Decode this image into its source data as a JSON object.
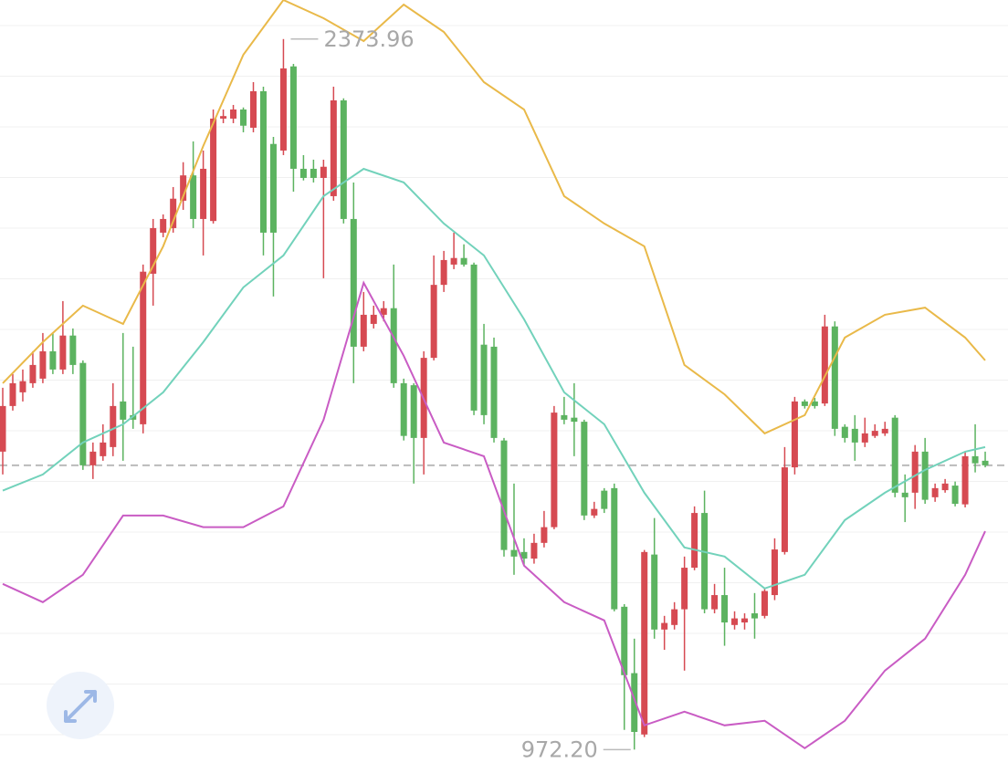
{
  "chart_data": {
    "type": "candlestick",
    "ylim": [
      926,
      2451
    ],
    "up_color": "#d64a52",
    "down_color": "#5cb360",
    "ohlc": [
      [
        1560,
        1686,
        1515,
        1650
      ],
      [
        1650,
        1713,
        1641,
        1695
      ],
      [
        1677,
        1722,
        1659,
        1699
      ],
      [
        1695,
        1758,
        1686,
        1731
      ],
      [
        1704,
        1794,
        1695,
        1758
      ],
      [
        1758,
        1794,
        1713,
        1722
      ],
      [
        1722,
        1857,
        1713,
        1789
      ],
      [
        1789,
        1803,
        1713,
        1731
      ],
      [
        1735,
        1740,
        1524,
        1533
      ],
      [
        1533,
        1578,
        1506,
        1560
      ],
      [
        1551,
        1614,
        1542,
        1578
      ],
      [
        1569,
        1695,
        1551,
        1650
      ],
      [
        1659,
        1794,
        1542,
        1623
      ],
      [
        1632,
        1767,
        1605,
        1623
      ],
      [
        1614,
        1929,
        1596,
        1915
      ],
      [
        1911,
        2019,
        1848,
        2001
      ],
      [
        1992,
        2028,
        1983,
        2019
      ],
      [
        2001,
        2082,
        1992,
        2059
      ],
      [
        2055,
        2131,
        2037,
        2105
      ],
      [
        2105,
        2172,
        2001,
        2019
      ],
      [
        2019,
        2154,
        1947,
        2118
      ],
      [
        2015,
        2235,
        2010,
        2217
      ],
      [
        2217,
        2235,
        2208,
        2222
      ],
      [
        2217,
        2244,
        2208,
        2235
      ],
      [
        2235,
        2239,
        2190,
        2203
      ],
      [
        2199,
        2289,
        2190,
        2271
      ],
      [
        2271,
        2280,
        1947,
        1992
      ],
      [
        2167,
        2181,
        1866,
        1992
      ],
      [
        2154,
        2373.96,
        2145,
        2316
      ],
      [
        2320,
        2325,
        2073,
        2118
      ],
      [
        2118,
        2145,
        2095,
        2100
      ],
      [
        2118,
        2136,
        2091,
        2100
      ],
      [
        2100,
        2136,
        1902,
        2122
      ],
      [
        2064,
        2280,
        2055,
        2253
      ],
      [
        2253,
        2257,
        2010,
        2019
      ],
      [
        2019,
        2091,
        1695,
        1767
      ],
      [
        1767,
        1875,
        1758,
        1830
      ],
      [
        1812,
        1848,
        1803,
        1830
      ],
      [
        1830,
        1857,
        1817,
        1843
      ],
      [
        1843,
        1929,
        1686,
        1695
      ],
      [
        1695,
        1704,
        1582,
        1591
      ],
      [
        1691,
        1695,
        1497,
        1587
      ],
      [
        1587,
        1758,
        1515,
        1745
      ],
      [
        1745,
        1947,
        1740,
        1889
      ],
      [
        1889,
        1956,
        1875,
        1938
      ],
      [
        1929,
        1992,
        1920,
        1942
      ],
      [
        1942,
        1969,
        1925,
        1929
      ],
      [
        1929,
        1933,
        1632,
        1641
      ],
      [
        1771,
        1812,
        1614,
        1632
      ],
      [
        1767,
        1785,
        1578,
        1587
      ],
      [
        1582,
        1587,
        1353,
        1366
      ],
      [
        1366,
        1497,
        1317,
        1353
      ],
      [
        1362,
        1389,
        1335,
        1349
      ],
      [
        1349,
        1398,
        1339,
        1380
      ],
      [
        1380,
        1443,
        1371,
        1411
      ],
      [
        1411,
        1650,
        1407,
        1637
      ],
      [
        1632,
        1668,
        1614,
        1623
      ],
      [
        1627,
        1695,
        1551,
        1619
      ],
      [
        1619,
        1623,
        1425,
        1434
      ],
      [
        1434,
        1461,
        1429,
        1447
      ],
      [
        1483,
        1488,
        1439,
        1447
      ],
      [
        1488,
        1497,
        1245,
        1249
      ],
      [
        1254,
        1259,
        1011,
        1119
      ],
      [
        1123,
        1191,
        972.2,
        1007
      ],
      [
        1002,
        1366,
        997,
        1362
      ],
      [
        1357,
        1429,
        1191,
        1209
      ],
      [
        1209,
        1236,
        1169,
        1222
      ],
      [
        1218,
        1263,
        1209,
        1249
      ],
      [
        1249,
        1353,
        1128,
        1331
      ],
      [
        1331,
        1452,
        1326,
        1439
      ],
      [
        1439,
        1483,
        1241,
        1249
      ],
      [
        1249,
        1299,
        1241,
        1277
      ],
      [
        1277,
        1331,
        1177,
        1223
      ],
      [
        1218,
        1245,
        1209,
        1231
      ],
      [
        1223,
        1241,
        1209,
        1231
      ],
      [
        1241,
        1281,
        1191,
        1231
      ],
      [
        1236,
        1290,
        1231,
        1285
      ],
      [
        1277,
        1389,
        1267,
        1367
      ],
      [
        1362,
        1569,
        1357,
        1529
      ],
      [
        1529,
        1668,
        1515,
        1659
      ],
      [
        1659,
        1663,
        1645,
        1650
      ],
      [
        1659,
        1666,
        1645,
        1650
      ],
      [
        1655,
        1830,
        1650,
        1807
      ],
      [
        1807,
        1817,
        1591,
        1605
      ],
      [
        1609,
        1614,
        1578,
        1587
      ],
      [
        1605,
        1632,
        1542,
        1578
      ],
      [
        1578,
        1627,
        1569,
        1596
      ],
      [
        1591,
        1614,
        1587,
        1601
      ],
      [
        1596,
        1619,
        1591,
        1605
      ],
      [
        1627,
        1632,
        1470,
        1479
      ],
      [
        1479,
        1515,
        1421,
        1470
      ],
      [
        1479,
        1573,
        1447,
        1560
      ],
      [
        1560,
        1587,
        1457,
        1465
      ],
      [
        1470,
        1497,
        1461,
        1488
      ],
      [
        1484,
        1506,
        1479,
        1497
      ],
      [
        1493,
        1501,
        1452,
        1457
      ],
      [
        1456,
        1560,
        1450,
        1551
      ],
      [
        1551,
        1614,
        1519,
        1537
      ],
      [
        1542,
        1560,
        1529,
        1533
      ]
    ],
    "bands": {
      "x": [
        0,
        4,
        8,
        12,
        16,
        20,
        24,
        28,
        32,
        36,
        40,
        44,
        48,
        52,
        56,
        60,
        64,
        68,
        72,
        76,
        80,
        84,
        88,
        92,
        96,
        98
      ],
      "series": [
        {
          "color": "#e9b949",
          "values": [
            1695,
            1776,
            1848,
            1812,
            1965,
            2163,
            2343,
            2451,
            2415,
            2370,
            2442,
            2388,
            2289,
            2235,
            2064,
            2010,
            1965,
            1731,
            1673,
            1596,
            1632,
            1785,
            1830,
            1844,
            1785,
            1740
          ]
        },
        {
          "color": "#72d2bb",
          "values": [
            1483,
            1515,
            1578,
            1614,
            1677,
            1776,
            1884,
            1947,
            2064,
            2118,
            2091,
            2010,
            1947,
            1821,
            1677,
            1614,
            1479,
            1371,
            1353,
            1290,
            1317,
            1425,
            1479,
            1524,
            1560,
            1569
          ]
        },
        {
          "color": "#c95cc4",
          "values": [
            1299,
            1263,
            1317,
            1434,
            1434,
            1411,
            1411,
            1452,
            1623,
            1893,
            1749,
            1578,
            1551,
            1335,
            1263,
            1227,
            1020,
            1047,
            1020,
            1029,
            975,
            1029,
            1128,
            1191,
            1317,
            1403
          ]
        }
      ]
    },
    "reference_line": 1533,
    "annotations": [
      {
        "value": 2373.96,
        "label": "2373.96",
        "index": 28
      },
      {
        "value": 972.2,
        "label": "972.20",
        "index": 63
      }
    ]
  }
}
